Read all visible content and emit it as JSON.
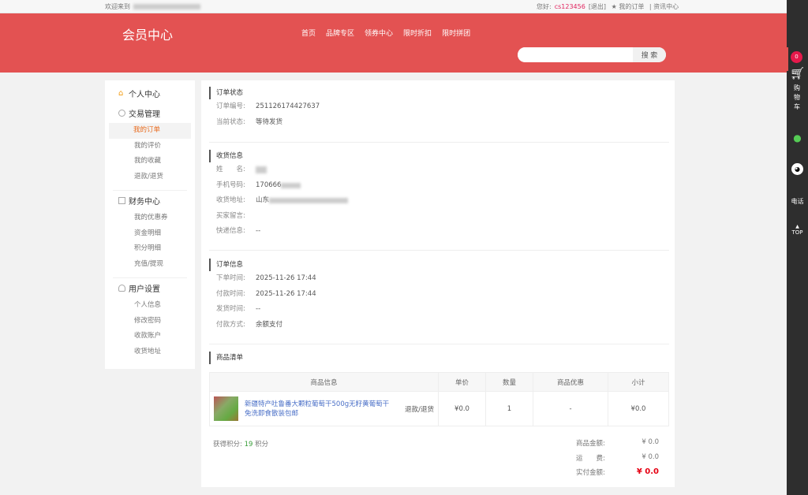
{
  "topbar": {
    "welcome": "欢迎来到",
    "greeting": "您好:",
    "username": "cs123456",
    "logout": "[退出]",
    "my_orders": "★ 我的订单",
    "news": "资讯中心"
  },
  "header": {
    "title": "会员中心",
    "nav": [
      "首页",
      "品牌专区",
      "领券中心",
      "限时折扣",
      "限时拼团"
    ],
    "search_placeholder": "",
    "search_button": "搜 索"
  },
  "sidebar": {
    "personal": "个人中心",
    "groups": [
      {
        "title": "交易管理",
        "items": [
          "我的订单",
          "我的评价",
          "我的收藏",
          "退款/退货"
        ]
      },
      {
        "title": "财务中心",
        "items": [
          "我的优惠券",
          "资金明细",
          "积分明细",
          "充值/提现"
        ]
      },
      {
        "title": "用户设置",
        "items": [
          "个人信息",
          "修改密码",
          "收款账户",
          "收货地址"
        ]
      }
    ],
    "active": "我的订单"
  },
  "order_status": {
    "title": "订单状态",
    "no_label": "订单编号:",
    "no": "251126174427637",
    "status_label": "当前状态:",
    "status": "等待发货"
  },
  "shipping": {
    "title": "收货信息",
    "name_label": "姓　　名:",
    "phone_label": "手机号码:",
    "phone": "170666",
    "address_label": "收货地址:",
    "address": "山东",
    "message_label": "买家留言:",
    "message": "",
    "express_label": "快递信息:",
    "express": "--"
  },
  "order_info": {
    "title": "订单信息",
    "created_label": "下单时间:",
    "created": "2025-11-26 17:44",
    "paid_label": "付款时间:",
    "paid": "2025-11-26 17:44",
    "shipped_label": "发货时间:",
    "shipped": "--",
    "pay_method_label": "付款方式:",
    "pay_method": "余额支付"
  },
  "goods": {
    "title": "商品清单",
    "columns": [
      "商品信息",
      "单价",
      "数量",
      "商品优惠",
      "小计"
    ],
    "items": [
      {
        "name": "新疆特产吐鲁番大颗粒葡萄干500g无籽黄葡萄干免洗即食散装包邮",
        "refund": "退款/退货",
        "price": "¥0.0",
        "qty": "1",
        "discount": "-",
        "subtotal": "¥0.0"
      }
    ]
  },
  "summary": {
    "points_label": "获得积分:",
    "points": "19",
    "points_unit": "积分",
    "goods_total_label": "商品金额:",
    "goods_total": "¥ 0.0",
    "shipping_label": "运　　费:",
    "shipping": "¥ 0.0",
    "paid_label": "实付金额:",
    "paid": "¥ 0.0"
  },
  "rightbar": {
    "cart_count": "0",
    "cart": "购物车",
    "phone": "电话",
    "top": "TOP"
  },
  "colors": {
    "header": "#e35252",
    "accent": "#e86a1c",
    "price": "#e60012"
  }
}
